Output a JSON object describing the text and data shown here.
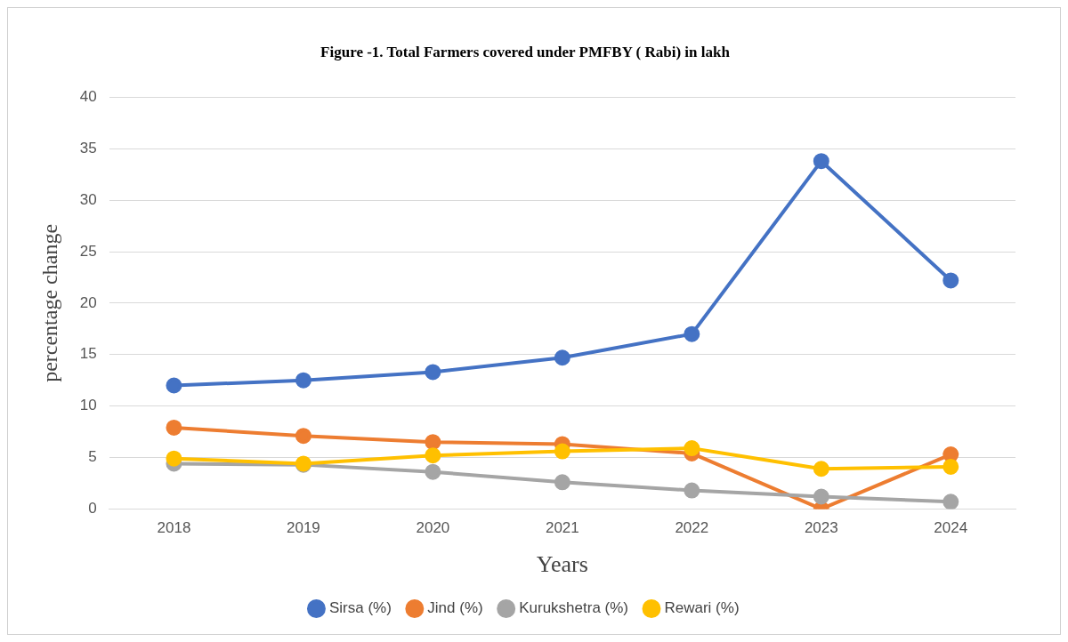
{
  "chart_data": {
    "type": "line",
    "title": "Figure -1. Total Farmers covered under PMFBY ( Rabi) in lakh",
    "xlabel": "Years",
    "ylabel": "percentage change",
    "categories": [
      "2018",
      "2019",
      "2020",
      "2021",
      "2022",
      "2023",
      "2024"
    ],
    "series": [
      {
        "name": "Sirsa (%)",
        "color": "#4472c4",
        "values": [
          12.0,
          12.5,
          13.3,
          14.7,
          17.0,
          33.8,
          22.2
        ]
      },
      {
        "name": "Jind (%)",
        "color": "#ed7d31",
        "values": [
          7.9,
          7.1,
          6.5,
          6.3,
          5.4,
          0,
          5.3
        ]
      },
      {
        "name": "Kurukshetra (%)",
        "color": "#a5a5a5",
        "values": [
          4.4,
          4.3,
          3.6,
          2.6,
          1.8,
          1.2,
          0.7
        ]
      },
      {
        "name": "Rewari (%)",
        "color": "#ffc000",
        "values": [
          4.9,
          4.4,
          5.2,
          5.6,
          5.9,
          3.9,
          4.1
        ]
      }
    ],
    "ylim": [
      0,
      40
    ],
    "yticks": [
      0,
      5,
      10,
      15,
      20,
      25,
      30,
      35,
      40
    ],
    "grid": "y",
    "legend": "bottom",
    "marker": "circle",
    "line_style": "solid"
  }
}
